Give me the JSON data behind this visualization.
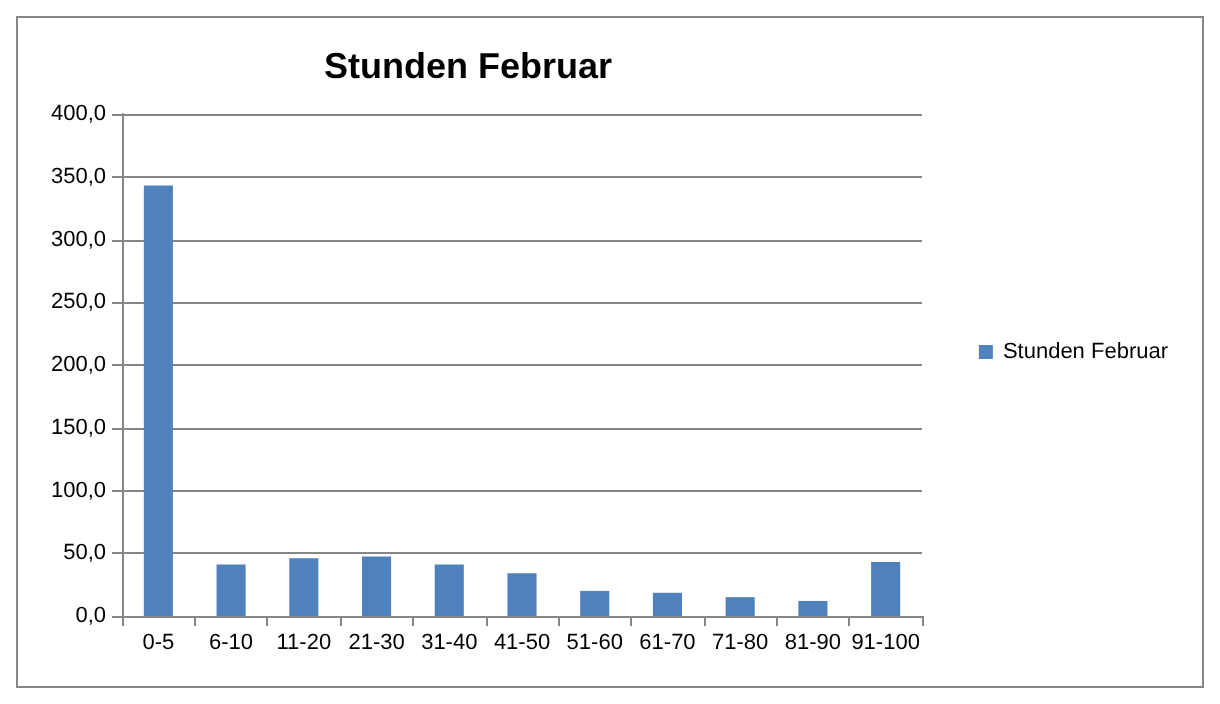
{
  "chart_data": {
    "type": "bar",
    "title": "Stunden Februar",
    "categories": [
      "0-5",
      "6-10",
      "11-20",
      "21-30",
      "31-40",
      "41-50",
      "51-60",
      "61-70",
      "71-80",
      "81-90",
      "91-100"
    ],
    "series": [
      {
        "name": "Stunden Februar",
        "color": "#4f81bd",
        "values": [
          343,
          41,
          46,
          47.5,
          41,
          34,
          20,
          18.5,
          15,
          12,
          43
        ]
      }
    ],
    "ylim": [
      0,
      400
    ],
    "yticks": [
      {
        "value": 0,
        "label": "0,0"
      },
      {
        "value": 50,
        "label": "50,0"
      },
      {
        "value": 100,
        "label": "100,0"
      },
      {
        "value": 150,
        "label": "150,0"
      },
      {
        "value": 200,
        "label": "200,0"
      },
      {
        "value": 250,
        "label": "250,0"
      },
      {
        "value": 300,
        "label": "300,0"
      },
      {
        "value": 350,
        "label": "350,0"
      },
      {
        "value": 400,
        "label": "400,0"
      }
    ],
    "grid": "y",
    "legend": "right"
  }
}
